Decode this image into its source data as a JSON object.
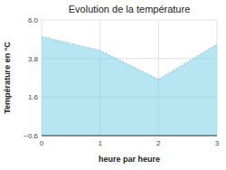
{
  "chart_data": {
    "type": "area",
    "title": "Evolution de la température",
    "x_label": "heure par heure",
    "y_label": "Température en °C",
    "x": [
      0,
      1,
      2,
      3
    ],
    "values": [
      5.05,
      4.25,
      2.6,
      4.6
    ],
    "xlim": [
      0,
      3
    ],
    "ylim": [
      -0.6,
      6.0
    ],
    "xticks": [
      0,
      1,
      2,
      3
    ],
    "yticks": [
      {
        "value": -0.6,
        "label": "−0.6"
      },
      1.6,
      3.8,
      {
        "value": 6.0,
        "label": "6.0"
      }
    ],
    "color": "#7ecfe8",
    "line_style": "dotted",
    "grid": true
  }
}
